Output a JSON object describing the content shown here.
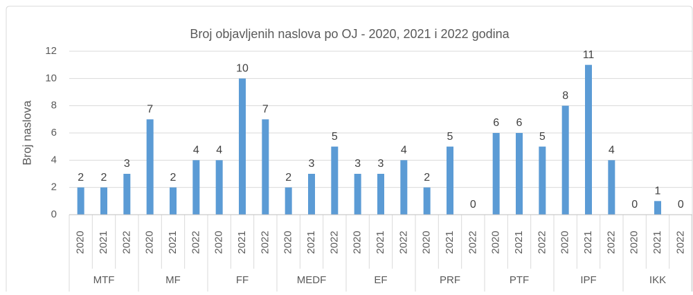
{
  "chart_data": {
    "type": "bar",
    "title": "Broj objavljenih naslova po OJ - 2020, 2021 i 2022 godina",
    "y_label": "Broj naslova",
    "color": "#5b9bd5",
    "groups": [
      {
        "name": "MTF",
        "categories": [
          "2020",
          "2021",
          "2022"
        ],
        "values": [
          2,
          2,
          3
        ]
      },
      {
        "name": "MF",
        "categories": [
          "2020",
          "2021",
          "2022"
        ],
        "values": [
          7,
          2,
          4
        ]
      },
      {
        "name": "FF",
        "categories": [
          "2020",
          "2021",
          "2022"
        ],
        "values": [
          4,
          10,
          7
        ]
      },
      {
        "name": "MEDF",
        "categories": [
          "2020",
          "2021",
          "2022"
        ],
        "values": [
          2,
          3,
          5
        ]
      },
      {
        "name": "EF",
        "categories": [
          "2020",
          "2021",
          "2022"
        ],
        "values": [
          3,
          3,
          4
        ]
      },
      {
        "name": "PRF",
        "categories": [
          "2020",
          "2021",
          "2022"
        ],
        "values": [
          2,
          5,
          0
        ]
      },
      {
        "name": "PTF",
        "categories": [
          "2020",
          "2021",
          "2022"
        ],
        "values": [
          6,
          6,
          5
        ]
      },
      {
        "name": "IPF",
        "categories": [
          "2020",
          "2021",
          "2022"
        ],
        "values": [
          8,
          11,
          4
        ]
      },
      {
        "name": "IKK",
        "categories": [
          "2020",
          "2021",
          "2022"
        ],
        "values": [
          0,
          1,
          0
        ]
      }
    ],
    "ylim": [
      0,
      12
    ],
    "yticks": [
      0,
      2,
      4,
      6,
      8,
      10,
      12
    ],
    "grid": true
  }
}
